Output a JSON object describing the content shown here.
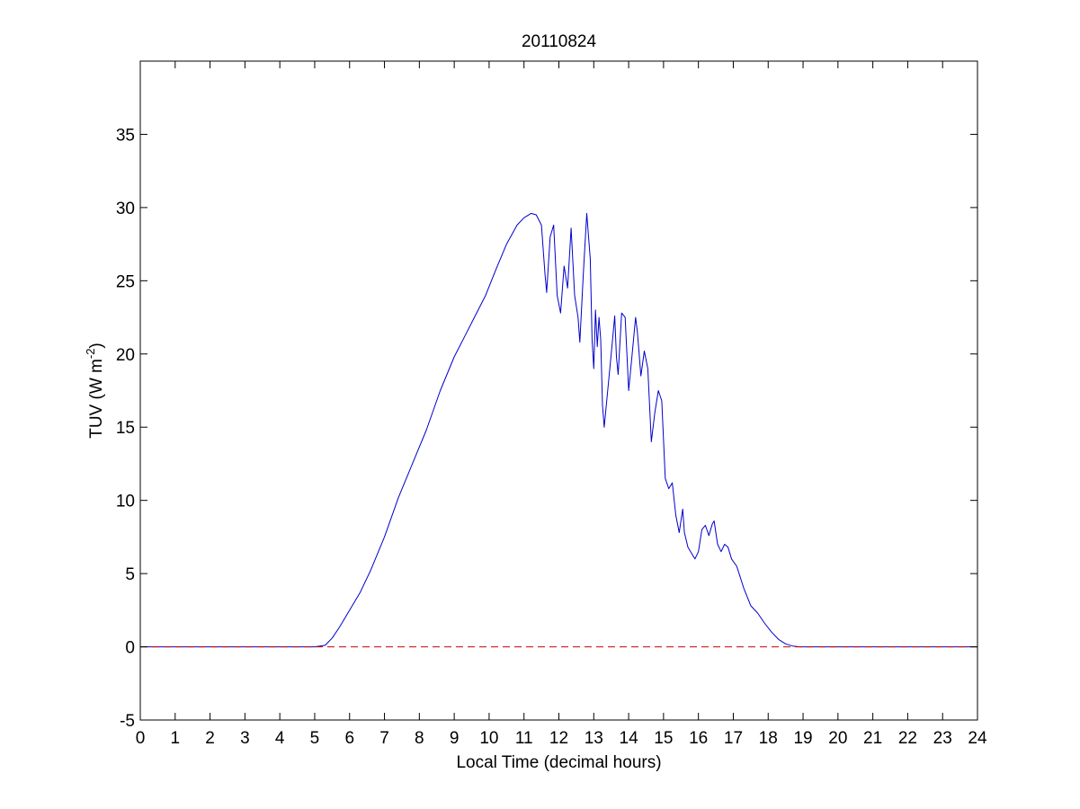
{
  "chart_data": {
    "type": "line",
    "title": "20110824",
    "xlabel": "Local Time (decimal hours)",
    "ylabel": {
      "main": "TUV (W m",
      "sup": "-2",
      "close": ")"
    },
    "xlim": [
      0,
      24
    ],
    "ylim": [
      -5,
      40
    ],
    "xticks": [
      0,
      1,
      2,
      3,
      4,
      5,
      6,
      7,
      8,
      9,
      10,
      11,
      12,
      13,
      14,
      15,
      16,
      17,
      18,
      19,
      20,
      21,
      22,
      23,
      24
    ],
    "yticks": [
      -5,
      0,
      5,
      10,
      15,
      20,
      25,
      30,
      35
    ],
    "grid": false,
    "legend": "none",
    "series": [
      {
        "color": "#0000cc",
        "style": "solid",
        "x": [
          0,
          5.0,
          5.3,
          5.5,
          5.7,
          6.0,
          6.3,
          6.6,
          7.0,
          7.4,
          7.8,
          8.2,
          8.6,
          9.0,
          9.3,
          9.6,
          9.9,
          10.2,
          10.5,
          10.8,
          11.0,
          11.2,
          11.35,
          11.5,
          11.6,
          11.65,
          11.75,
          11.85,
          11.95,
          12.05,
          12.15,
          12.25,
          12.35,
          12.45,
          12.55,
          12.6,
          12.7,
          12.8,
          12.85,
          12.9,
          12.95,
          13.0,
          13.05,
          13.1,
          13.15,
          13.2,
          13.25,
          13.3,
          13.4,
          13.5,
          13.6,
          13.65,
          13.7,
          13.8,
          13.9,
          14.0,
          14.1,
          14.2,
          14.25,
          14.35,
          14.45,
          14.55,
          14.65,
          14.75,
          14.85,
          14.95,
          15.05,
          15.15,
          15.25,
          15.35,
          15.45,
          15.55,
          15.6,
          15.7,
          15.8,
          15.9,
          16.0,
          16.1,
          16.2,
          16.3,
          16.4,
          16.45,
          16.55,
          16.65,
          16.75,
          16.85,
          16.95,
          17.1,
          17.3,
          17.5,
          17.7,
          17.9,
          18.1,
          18.3,
          18.5,
          18.7,
          18.9,
          19.1,
          19.3,
          20.0,
          24.0
        ],
        "y": [
          0,
          0,
          0.1,
          0.6,
          1.3,
          2.5,
          3.7,
          5.2,
          7.5,
          10.2,
          12.5,
          14.8,
          17.5,
          19.8,
          21.2,
          22.6,
          24.0,
          25.8,
          27.5,
          28.8,
          29.3,
          29.6,
          29.5,
          28.8,
          25.5,
          24.2,
          28.0,
          28.8,
          24.0,
          22.8,
          26.0,
          24.5,
          28.6,
          24.0,
          22.5,
          20.8,
          25.5,
          29.6,
          28.0,
          26.5,
          21.0,
          19.0,
          23.0,
          20.5,
          22.5,
          21.0,
          16.5,
          15.0,
          17.5,
          20.0,
          22.6,
          19.8,
          18.6,
          22.8,
          22.5,
          17.5,
          20.0,
          22.5,
          21.5,
          18.5,
          20.2,
          19.0,
          14.0,
          16.0,
          17.5,
          16.8,
          11.5,
          10.8,
          11.2,
          9.0,
          7.8,
          9.4,
          7.8,
          6.8,
          6.4,
          6.0,
          6.5,
          8.0,
          8.3,
          7.6,
          8.4,
          8.6,
          7.0,
          6.5,
          7.0,
          6.8,
          6.0,
          5.5,
          4.0,
          2.8,
          2.3,
          1.6,
          1.0,
          0.5,
          0.2,
          0.05,
          0,
          0,
          0,
          0,
          0
        ]
      },
      {
        "color": "#cc0000",
        "style": "dashed",
        "x": [
          0,
          24
        ],
        "y": [
          0,
          0
        ]
      }
    ]
  }
}
